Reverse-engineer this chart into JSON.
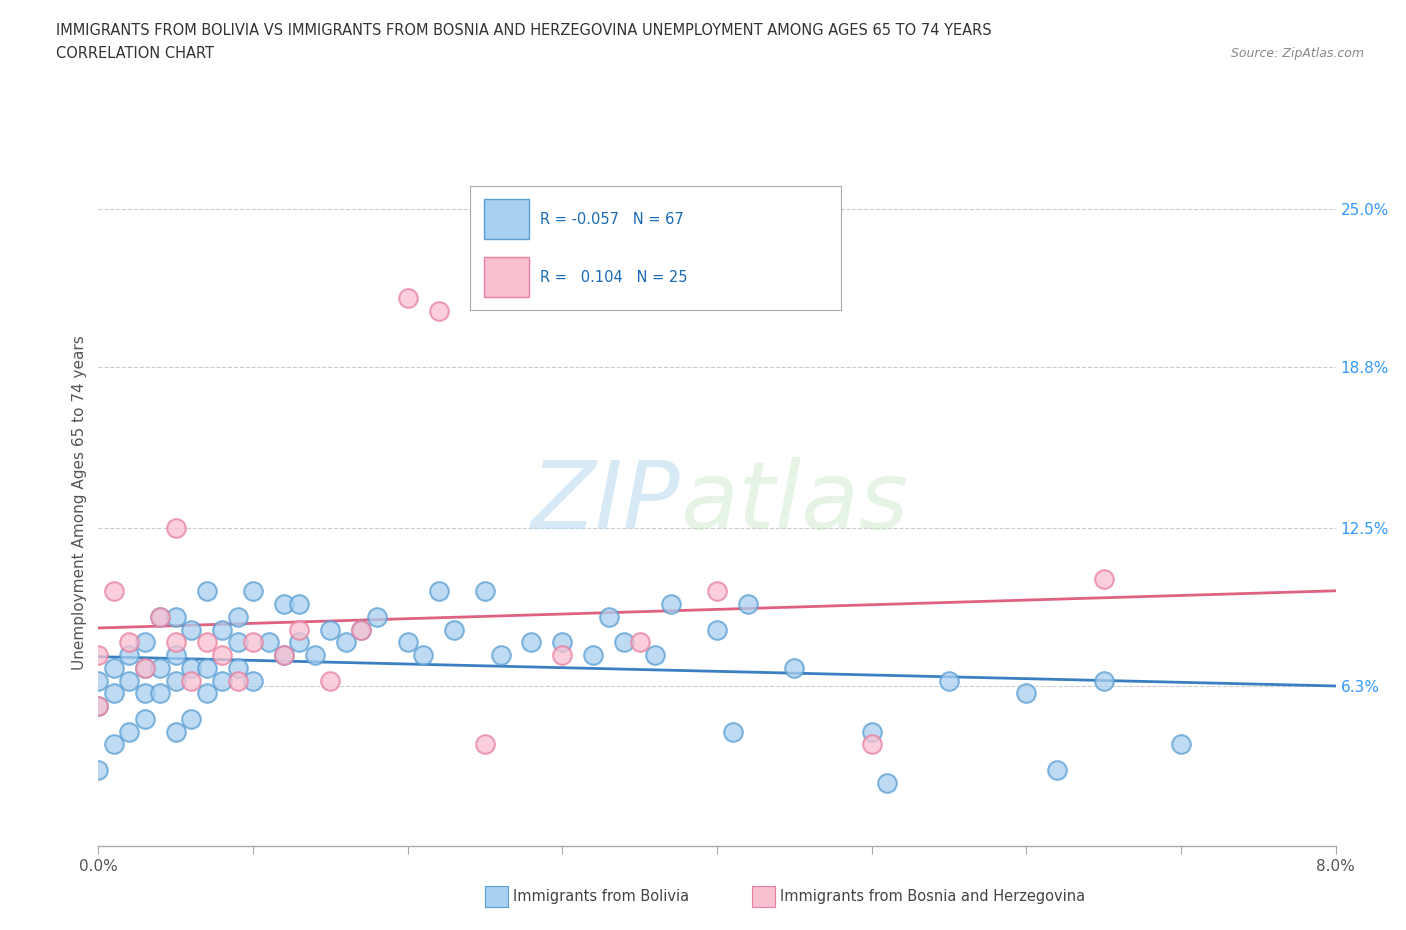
{
  "title_line1": "IMMIGRANTS FROM BOLIVIA VS IMMIGRANTS FROM BOSNIA AND HERZEGOVINA UNEMPLOYMENT AMONG AGES 65 TO 74 YEARS",
  "title_line2": "CORRELATION CHART",
  "source_text": "Source: ZipAtlas.com",
  "ylabel": "Unemployment Among Ages 65 to 74 years",
  "xmin": 0.0,
  "xmax": 0.08,
  "ymin": 0.0,
  "ymax": 0.27,
  "y_ticks_right": [
    0.063,
    0.125,
    0.188,
    0.25
  ],
  "y_tick_labels_right": [
    "6.3%",
    "12.5%",
    "18.8%",
    "25.0%"
  ],
  "bolivia_color": "#a8d0f0",
  "bolivia_edge": "#5a9fd4",
  "bosnia_color": "#f9c0d0",
  "bosnia_edge": "#e87fa0",
  "bolivia_line_color": "#3a7fc1",
  "bosnia_line_color": "#e06080",
  "legend_R_bolivia": "-0.057",
  "legend_N_bolivia": "67",
  "legend_R_bosnia": "0.104",
  "legend_N_bosnia": "25",
  "legend_label_bolivia": "Immigrants from Bolivia",
  "legend_label_bosnia": "Immigrants from Bosnia and Herzegovina",
  "watermark_ZIP": "ZIP",
  "watermark_atlas": "atlas",
  "bolivia_x": [
    0.0,
    0.0,
    0.0,
    0.001,
    0.001,
    0.001,
    0.002,
    0.002,
    0.002,
    0.003,
    0.003,
    0.003,
    0.003,
    0.004,
    0.004,
    0.004,
    0.005,
    0.005,
    0.005,
    0.005,
    0.006,
    0.006,
    0.006,
    0.007,
    0.007,
    0.007,
    0.008,
    0.008,
    0.009,
    0.009,
    0.009,
    0.01,
    0.01,
    0.011,
    0.012,
    0.012,
    0.013,
    0.013,
    0.014,
    0.015,
    0.016,
    0.017,
    0.018,
    0.02,
    0.021,
    0.022,
    0.023,
    0.025,
    0.026,
    0.028,
    0.03,
    0.032,
    0.033,
    0.034,
    0.036,
    0.037,
    0.04,
    0.041,
    0.042,
    0.045,
    0.05,
    0.051,
    0.055,
    0.06,
    0.062,
    0.065,
    0.07
  ],
  "bolivia_y": [
    0.03,
    0.055,
    0.065,
    0.04,
    0.06,
    0.07,
    0.045,
    0.065,
    0.075,
    0.05,
    0.06,
    0.07,
    0.08,
    0.06,
    0.07,
    0.09,
    0.045,
    0.065,
    0.075,
    0.09,
    0.05,
    0.07,
    0.085,
    0.06,
    0.07,
    0.1,
    0.065,
    0.085,
    0.07,
    0.08,
    0.09,
    0.1,
    0.065,
    0.08,
    0.075,
    0.095,
    0.08,
    0.095,
    0.075,
    0.085,
    0.08,
    0.085,
    0.09,
    0.08,
    0.075,
    0.1,
    0.085,
    0.1,
    0.075,
    0.08,
    0.08,
    0.075,
    0.09,
    0.08,
    0.075,
    0.095,
    0.085,
    0.045,
    0.095,
    0.07,
    0.045,
    0.025,
    0.065,
    0.06,
    0.03,
    0.065,
    0.04
  ],
  "bosnia_x": [
    0.0,
    0.0,
    0.001,
    0.002,
    0.003,
    0.004,
    0.005,
    0.005,
    0.006,
    0.007,
    0.008,
    0.009,
    0.01,
    0.012,
    0.013,
    0.015,
    0.017,
    0.02,
    0.022,
    0.025,
    0.03,
    0.035,
    0.04,
    0.05,
    0.065
  ],
  "bosnia_y": [
    0.055,
    0.075,
    0.1,
    0.08,
    0.07,
    0.09,
    0.08,
    0.125,
    0.065,
    0.08,
    0.075,
    0.065,
    0.08,
    0.075,
    0.085,
    0.065,
    0.085,
    0.215,
    0.21,
    0.04,
    0.075,
    0.08,
    0.1,
    0.04,
    0.105
  ]
}
